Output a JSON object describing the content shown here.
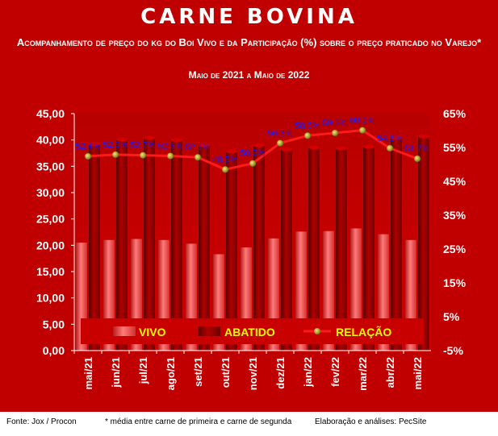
{
  "title": "CARNE BOVINA",
  "subtitle": "Acompanhamento de preço do kg do Boi Vivo e da Participação (%) sobre o preço praticado no Varejo*",
  "period": "Maio de 2021 a Maio de 2022",
  "footer": {
    "source": "Fonte: Jox / Procon",
    "note": "* média entre carne de primeira e carne de segunda",
    "credits": "Elaboração e análises: PecSite"
  },
  "colors": {
    "background": "#c00000",
    "vivo": "#f05a5a",
    "abatido": "#8b0000",
    "relacao_line": "#ff1a1a",
    "relacao_marker": "#c8b400",
    "legend_text": "#ffff00",
    "data_label": "#1a1aff"
  },
  "chart_data": {
    "type": "bar",
    "categories": [
      "mai/21",
      "jun/21",
      "jul/21",
      "ago/21",
      "set/21",
      "out/21",
      "nov/21",
      "dez/21",
      "jan/22",
      "fev/22",
      "mar/22",
      "abr/22",
      "mai/22"
    ],
    "y_ticks": [
      "0,00",
      "5,00",
      "10,00",
      "15,00",
      "20,00",
      "25,00",
      "30,00",
      "35,00",
      "40,00",
      "45,00"
    ],
    "y2_ticks": [
      "-5%",
      "5%",
      "15%",
      "25%",
      "35%",
      "45%",
      "55%",
      "65%"
    ],
    "ylim": [
      0,
      45
    ],
    "y2lim": [
      -5,
      65
    ],
    "grid": false,
    "legend_position": "bottom-inside",
    "series": [
      {
        "name": "VIVO",
        "kind": "bar",
        "values": [
          20.5,
          21.0,
          21.2,
          21.0,
          20.3,
          18.3,
          19.6,
          21.3,
          22.6,
          22.7,
          23.2,
          22.1,
          21.0
        ]
      },
      {
        "name": "ABATIDO",
        "kind": "bar",
        "values": [
          39.2,
          40.1,
          40.4,
          40.0,
          39.0,
          37.8,
          39.0,
          38.2,
          38.6,
          38.4,
          38.7,
          40.4,
          40.7
        ]
      },
      {
        "name": "RELAÇÃO",
        "kind": "line",
        "axis": "secondary",
        "values": [
          52.4,
          52.9,
          52.7,
          52.5,
          52.1,
          48.5,
          50.3,
          56.3,
          58.5,
          59.3,
          60.1,
          54.8,
          51.7
        ],
        "labels": [
          "52,4%",
          "52,9%",
          "52,7%",
          "52,5%",
          "52,1%",
          "48,5%",
          "50,3%",
          "56,3%",
          "58,5%",
          "59,3%",
          "60,1%",
          "54,8%",
          "51,7%"
        ]
      }
    ]
  }
}
